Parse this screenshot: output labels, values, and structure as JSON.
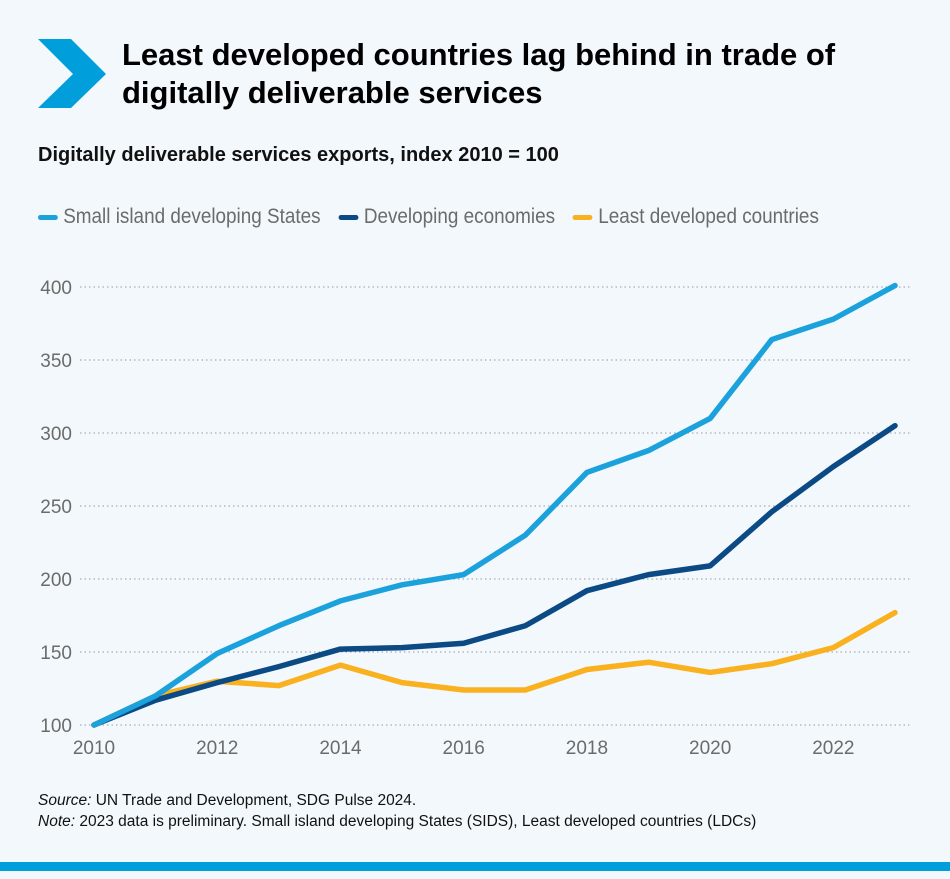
{
  "header": {
    "title": "Least developed countries lag behind in trade of digitally deliverable services",
    "icon": "chevron-right-icon",
    "accent": "#009edb"
  },
  "chart_data": {
    "type": "line",
    "title": "Least developed countries lag behind in trade of digitally deliverable services",
    "subtitle": "Digitally deliverable services exports, index 2010 = 100",
    "x": [
      2010,
      2011,
      2012,
      2013,
      2014,
      2015,
      2016,
      2017,
      2018,
      2019,
      2020,
      2021,
      2022,
      2023
    ],
    "xticks": [
      "2010",
      "2012",
      "2014",
      "2016",
      "2018",
      "2020",
      "2022"
    ],
    "yticks": [
      "100",
      "150",
      "200",
      "250",
      "300",
      "350",
      "400"
    ],
    "ylim": [
      100,
      400
    ],
    "xlim": [
      2010,
      2023
    ],
    "grid": "horizontal dotted",
    "legend": "top",
    "series": [
      {
        "name": "Small island developing States",
        "color": "#1ba1dc",
        "values": [
          100,
          120,
          149,
          168,
          185,
          196,
          203,
          230,
          273,
          288,
          310,
          364,
          378,
          401
        ]
      },
      {
        "name": "Developing economies",
        "color": "#0b4a84",
        "values": [
          100,
          117,
          129,
          140,
          152,
          153,
          156,
          168,
          192,
          203,
          209,
          246,
          277,
          305
        ]
      },
      {
        "name": "Least developed countries",
        "color": "#f9b120",
        "values": [
          100,
          120,
          130,
          127,
          141,
          129,
          124,
          124,
          138,
          143,
          136,
          142,
          153,
          177
        ]
      }
    ]
  },
  "footer": {
    "source_label": "Source:",
    "source_text": " UN Trade and Development, SDG Pulse 2024.",
    "note_label": "Note:",
    "note_text": " 2023 data is preliminary. Small island developing States (SIDS), Least developed countries (LDCs)"
  }
}
